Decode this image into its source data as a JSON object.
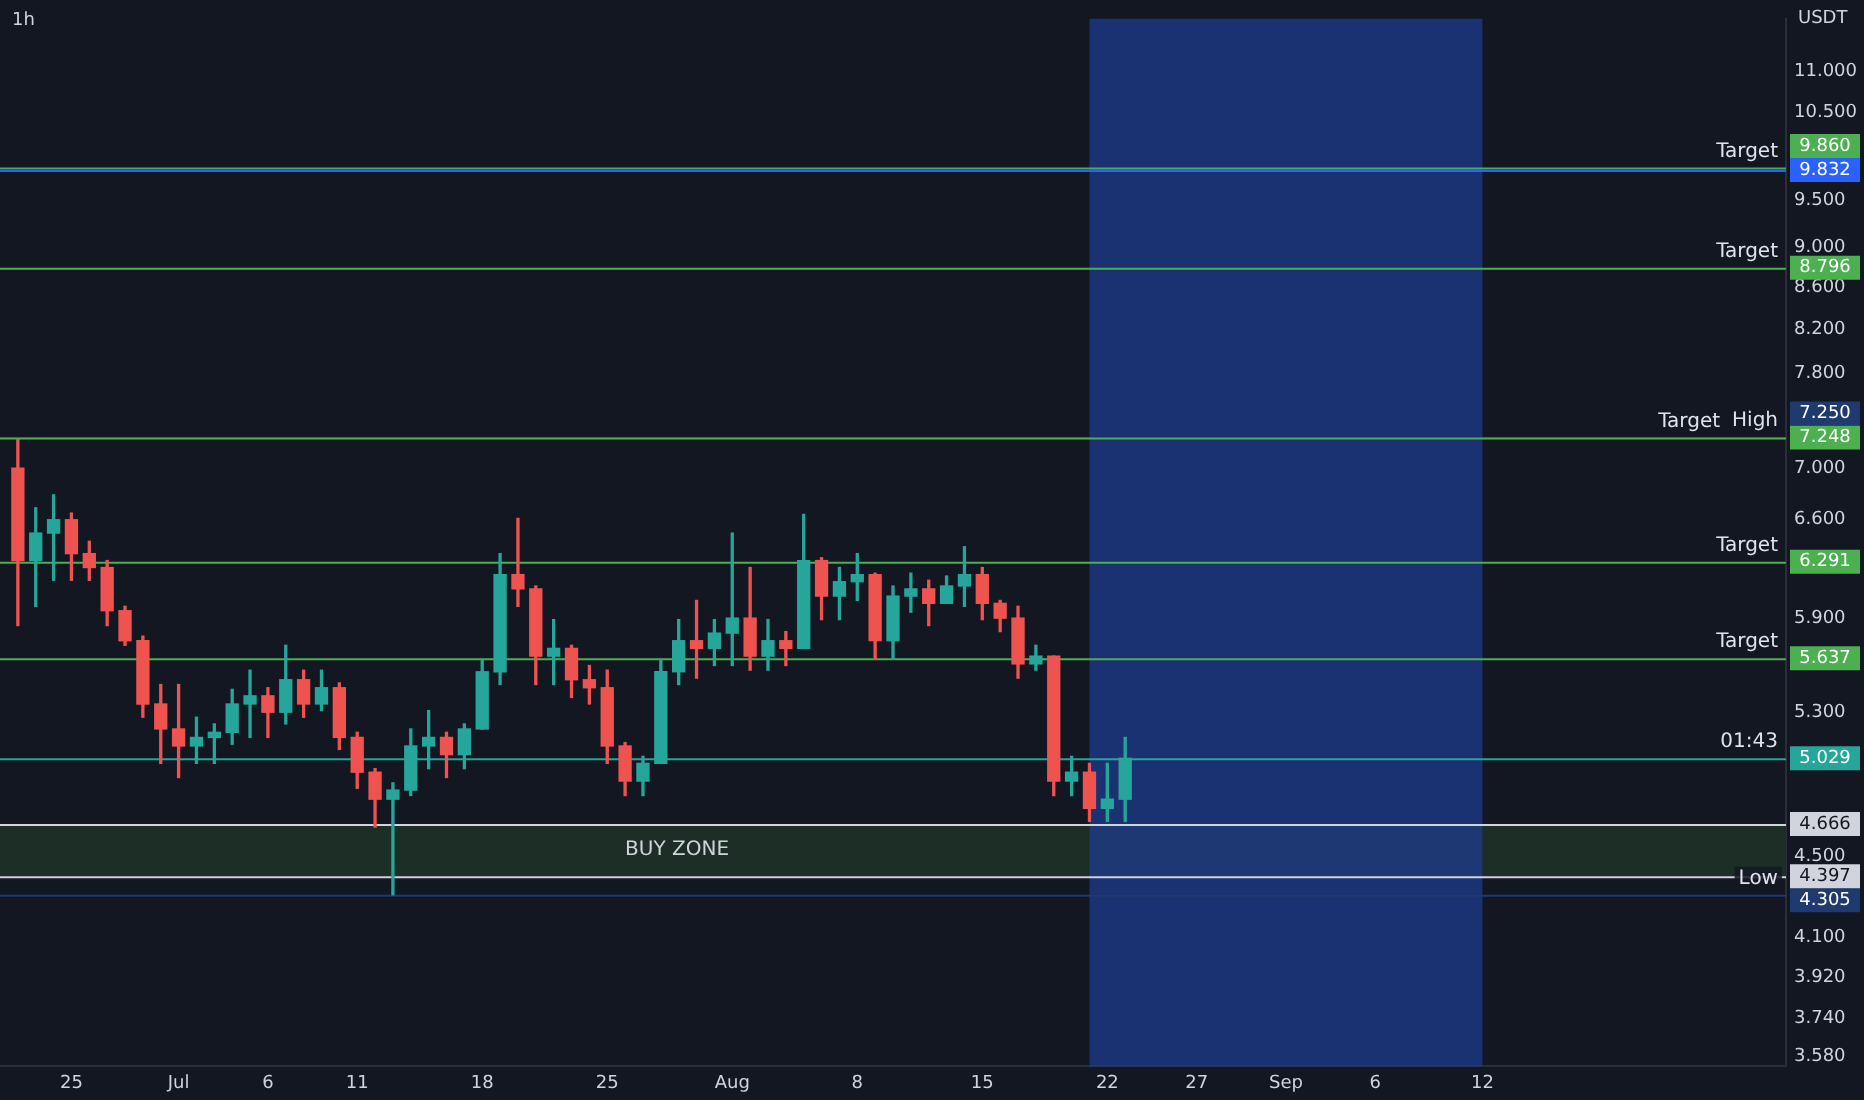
{
  "chart_data": {
    "type": "candlestick",
    "title": "1h",
    "ylabel": "USDT",
    "log": true,
    "grid": false,
    "legend": false,
    "x": [
      "--06-22",
      "--06-23",
      "--06-24",
      "--06-25",
      "--06-26",
      "--06-27",
      "--06-28",
      "--06-29",
      "--06-30",
      "--07-01",
      "--07-02",
      "--07-03",
      "--07-04",
      "--07-05",
      "--07-06",
      "--07-07",
      "--07-08",
      "--07-09",
      "--07-10",
      "--07-11",
      "--07-12",
      "--07-13",
      "--07-14",
      "--07-15",
      "--07-16",
      "--07-17",
      "--07-18",
      "--07-19",
      "--07-20",
      "--07-21",
      "--07-22",
      "--07-23",
      "--07-24",
      "--07-25",
      "--07-26",
      "--07-27",
      "--07-28",
      "--07-29",
      "--07-30",
      "--07-31",
      "--08-01",
      "--08-02",
      "--08-03",
      "--08-04",
      "--08-05",
      "--08-06",
      "--08-07",
      "--08-08",
      "--08-09",
      "--08-10",
      "--08-11",
      "--08-12",
      "--08-13",
      "--08-14",
      "--08-15",
      "--08-16",
      "--08-17",
      "--08-18",
      "--08-19",
      "--08-20",
      "--08-21",
      "--08-22",
      "--08-23"
    ],
    "ohlc": [
      [
        7.0,
        7.23,
        5.85,
        6.3
      ],
      [
        6.3,
        6.69,
        5.98,
        6.5
      ],
      [
        6.5,
        6.79,
        6.16,
        6.6
      ],
      [
        6.6,
        6.65,
        6.16,
        6.35
      ],
      [
        6.35,
        6.44,
        6.16,
        6.25
      ],
      [
        6.25,
        6.3,
        5.85,
        5.95
      ],
      [
        5.95,
        5.98,
        5.72,
        5.75
      ],
      [
        5.75,
        5.78,
        5.27,
        5.35
      ],
      [
        5.35,
        5.47,
        5.0,
        5.2
      ],
      [
        5.2,
        5.47,
        4.92,
        5.1
      ],
      [
        5.1,
        5.27,
        5.0,
        5.15
      ],
      [
        5.15,
        5.23,
        5.0,
        5.18
      ],
      [
        5.18,
        5.44,
        5.11,
        5.35
      ],
      [
        5.35,
        5.56,
        5.15,
        5.4
      ],
      [
        5.4,
        5.45,
        5.15,
        5.3
      ],
      [
        5.3,
        5.72,
        5.23,
        5.5
      ],
      [
        5.5,
        5.56,
        5.27,
        5.35
      ],
      [
        5.35,
        5.56,
        5.31,
        5.45
      ],
      [
        5.45,
        5.48,
        5.08,
        5.15
      ],
      [
        5.15,
        5.18,
        4.86,
        4.95
      ],
      [
        4.95,
        4.97,
        4.65,
        4.8
      ],
      [
        4.8,
        4.89,
        4.305,
        4.85
      ],
      [
        4.85,
        5.2,
        4.82,
        5.1
      ],
      [
        5.1,
        5.31,
        4.97,
        5.15
      ],
      [
        5.15,
        5.18,
        4.92,
        5.05
      ],
      [
        5.05,
        5.23,
        4.97,
        5.2
      ],
      [
        5.2,
        5.63,
        5.2,
        5.55
      ],
      [
        5.55,
        6.35,
        5.47,
        6.2
      ],
      [
        6.2,
        6.61,
        5.98,
        6.1
      ],
      [
        6.1,
        6.12,
        5.47,
        5.65
      ],
      [
        5.65,
        5.89,
        5.47,
        5.7
      ],
      [
        5.7,
        5.72,
        5.39,
        5.5
      ],
      [
        5.5,
        5.59,
        5.35,
        5.45
      ],
      [
        5.45,
        5.56,
        5.0,
        5.1
      ],
      [
        5.1,
        5.12,
        4.82,
        4.9
      ],
      [
        4.9,
        5.04,
        4.82,
        5.0
      ],
      [
        5.0,
        5.63,
        5.0,
        5.55
      ],
      [
        5.55,
        5.89,
        5.47,
        5.75
      ],
      [
        5.75,
        6.02,
        5.51,
        5.7
      ],
      [
        5.7,
        5.89,
        5.59,
        5.8
      ],
      [
        5.8,
        6.5,
        5.59,
        5.9
      ],
      [
        5.9,
        6.25,
        5.56,
        5.65
      ],
      [
        5.65,
        5.89,
        5.56,
        5.75
      ],
      [
        5.75,
        5.81,
        5.59,
        5.7
      ],
      [
        5.7,
        6.64,
        5.7,
        6.3
      ],
      [
        6.3,
        6.32,
        5.89,
        6.05
      ],
      [
        6.05,
        6.25,
        5.89,
        6.15
      ],
      [
        6.15,
        6.35,
        6.02,
        6.2
      ],
      [
        6.2,
        6.21,
        5.63,
        5.75
      ],
      [
        5.75,
        6.12,
        5.63,
        6.05
      ],
      [
        6.05,
        6.21,
        5.94,
        6.1
      ],
      [
        6.1,
        6.16,
        5.85,
        6.0
      ],
      [
        6.0,
        6.19,
        6.0,
        6.12
      ],
      [
        6.12,
        6.4,
        5.98,
        6.2
      ],
      [
        6.2,
        6.25,
        5.89,
        6.0
      ],
      [
        6.0,
        6.02,
        5.81,
        5.9
      ],
      [
        5.9,
        5.98,
        5.51,
        5.6
      ],
      [
        5.6,
        5.72,
        5.56,
        5.65
      ],
      [
        5.65,
        5.65,
        4.82,
        4.9
      ],
      [
        4.9,
        5.04,
        4.82,
        4.95
      ],
      [
        4.95,
        5.0,
        4.68,
        4.75
      ],
      [
        4.75,
        5.0,
        4.68,
        4.8
      ],
      [
        4.8,
        5.15,
        4.68,
        5.029
      ]
    ],
    "colors": [
      "#ef5350",
      "#26a69a",
      "#26a69a",
      "#ef5350",
      "#ef5350",
      "#ef5350",
      "#ef5350",
      "#ef5350",
      "#ef5350",
      "#ef5350",
      "#26a69a",
      "#26a69a",
      "#26a69a",
      "#26a69a",
      "#ef5350",
      "#26a69a",
      "#ef5350",
      "#26a69a",
      "#ef5350",
      "#ef5350",
      "#ef5350",
      "#26a69a",
      "#26a69a",
      "#26a69a",
      "#ef5350",
      "#26a69a",
      "#26a69a",
      "#26a69a",
      "#ef5350",
      "#ef5350",
      "#26a69a",
      "#ef5350",
      "#ef5350",
      "#ef5350",
      "#ef5350",
      "#26a69a",
      "#26a69a",
      "#26a69a",
      "#ef5350",
      "#26a69a",
      "#26a69a",
      "#ef5350",
      "#26a69a",
      "#ef5350",
      "#26a69a",
      "#ef5350",
      "#26a69a",
      "#26a69a",
      "#ef5350",
      "#26a69a",
      "#26a69a",
      "#ef5350",
      "#26a69a",
      "#26a69a",
      "#ef5350",
      "#ef5350",
      "#ef5350",
      "#26a69a",
      "#ef5350",
      "#26a69a",
      "#ef5350",
      "#26a69a",
      "#26a69a"
    ],
    "xlim": [
      "--06-21",
      "--09-29"
    ],
    "xticks": [
      {
        "value": "--06-25",
        "label": "25"
      },
      {
        "value": "--07-01",
        "label": "Jul"
      },
      {
        "value": "--07-06",
        "label": "6"
      },
      {
        "value": "--07-11",
        "label": "11"
      },
      {
        "value": "--07-18",
        "label": "18"
      },
      {
        "value": "--07-25",
        "label": "25"
      },
      {
        "value": "--08-01",
        "label": "Aug"
      },
      {
        "value": "--08-08",
        "label": "8"
      },
      {
        "value": "--08-15",
        "label": "15"
      },
      {
        "value": "--08-22",
        "label": "22"
      },
      {
        "value": "--08-27",
        "label": "27"
      },
      {
        "value": "--09-01",
        "label": "Sep"
      },
      {
        "value": "--09-06",
        "label": "6"
      },
      {
        "value": "--09-12",
        "label": "12"
      }
    ],
    "ylim": [
      3.54,
      11.68
    ],
    "yticks": [
      {
        "value": 11,
        "label": "11.000"
      },
      {
        "value": 10.5,
        "label": "10.500"
      },
      {
        "value": 9.5,
        "label": "9.500"
      },
      {
        "value": 9,
        "label": "9.000"
      },
      {
        "value": 8.6,
        "label": "8.600"
      },
      {
        "value": 8.2,
        "label": "8.200"
      },
      {
        "value": 7.8,
        "label": "7.800"
      },
      {
        "value": 7,
        "label": "7.000"
      },
      {
        "value": 6.6,
        "label": "6.600"
      },
      {
        "value": 5.9,
        "label": "5.900"
      },
      {
        "value": 5.3,
        "label": "5.300"
      },
      {
        "value": 4.5,
        "label": "4.500"
      },
      {
        "value": 4.1,
        "label": "4.100"
      },
      {
        "value": 3.92,
        "label": "3.920"
      },
      {
        "value": 3.74,
        "label": "3.740"
      },
      {
        "value": 3.58,
        "label": "3.580"
      }
    ],
    "ref_lines": [
      {
        "axis": "y",
        "value": 9.86,
        "label": "9.860",
        "color": "#4caf50"
      },
      {
        "axis": "y",
        "value": 9.832,
        "label": "9.832",
        "color": "#2962ff"
      },
      {
        "axis": "y",
        "value": 8.796,
        "label": "8.796",
        "color": "#4caf50"
      },
      {
        "axis": "y",
        "value": 7.25,
        "label": "7.250",
        "color": "#1e3a6e"
      },
      {
        "axis": "y",
        "value": 7.248,
        "label": "7.248",
        "color": "#4caf50"
      },
      {
        "axis": "y",
        "value": 6.291,
        "label": "6.291",
        "color": "#4caf50"
      },
      {
        "axis": "y",
        "value": 5.637,
        "label": "5.637",
        "color": "#4caf50"
      },
      {
        "axis": "y",
        "value": 5.029,
        "label": "5.029",
        "color": "#26a69a"
      },
      {
        "axis": "y",
        "value": 4.666,
        "label": "4.666",
        "color": "#d1d4dc"
      },
      {
        "axis": "y",
        "value": 4.397,
        "label": "4.397",
        "color": "#d1d4dc"
      },
      {
        "axis": "y",
        "value": 4.305,
        "label": "4.305",
        "color": "#1e3a6e"
      }
    ],
    "annotations": [
      {
        "text": "Target",
        "y": 9.86
      },
      {
        "text": "Target",
        "y": 8.796
      },
      {
        "text": "High",
        "y": 7.25
      },
      {
        "text": "Target",
        "y": 7.248
      },
      {
        "text": "Target",
        "y": 6.291
      },
      {
        "text": "Target",
        "y": 5.637
      },
      {
        "text": "01:43",
        "y": 5.029
      },
      {
        "text": "Low",
        "y": 4.305
      }
    ],
    "bands": [
      {
        "axis": "y",
        "from": 4.397,
        "to": 4.666,
        "label": "BUY ZONE",
        "color": "#1c2e26"
      },
      {
        "axis": "x",
        "from": "--08-21",
        "to": "--09-12",
        "label": null,
        "color": "#1d3c8c"
      }
    ]
  }
}
